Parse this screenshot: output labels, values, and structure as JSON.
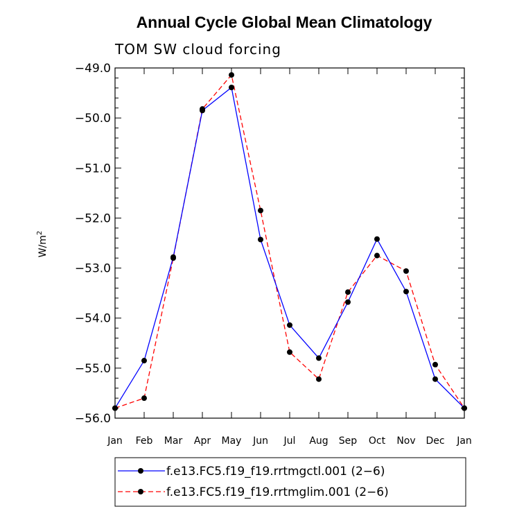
{
  "chart_data": {
    "type": "line",
    "title": "Annual Cycle Global Mean Climatology",
    "subtitle": "TOM SW cloud forcing",
    "ylabel": "W/m",
    "ylabel_sup": "2",
    "xlabel": "",
    "ylim": [
      -56.0,
      -49.0
    ],
    "yticks": [
      "-49.0",
      "-50.0",
      "-51.0",
      "-52.0",
      "-53.0",
      "-54.0",
      "-55.0",
      "-56.0"
    ],
    "categories": [
      "Jan",
      "Feb",
      "Mar",
      "Apr",
      "May",
      "Jun",
      "Jul",
      "Aug",
      "Sep",
      "Oct",
      "Nov",
      "Dec",
      "Jan"
    ],
    "grid": false,
    "legend_position": "bottom",
    "series": [
      {
        "name": "f.e13.FC5.f19_f19.rrtmgctl.001 (2-6)",
        "color": "#0000ff",
        "dash": "solid",
        "marker": "filled-circle",
        "values": [
          -55.8,
          -54.85,
          -52.78,
          -49.85,
          -49.39,
          -52.43,
          -54.14,
          -54.8,
          -53.68,
          -52.42,
          -53.47,
          -55.22,
          -55.8
        ]
      },
      {
        "name": "f.e13.FC5.f19_f19.rrtmglim.001 (2-6)",
        "color": "#ff0000",
        "dash": "dashed",
        "marker": "filled-circle",
        "values": [
          -55.8,
          -55.6,
          -52.8,
          -49.82,
          -49.14,
          -51.85,
          -54.68,
          -55.22,
          -53.48,
          -52.75,
          -53.06,
          -54.93,
          -55.8
        ]
      }
    ]
  }
}
